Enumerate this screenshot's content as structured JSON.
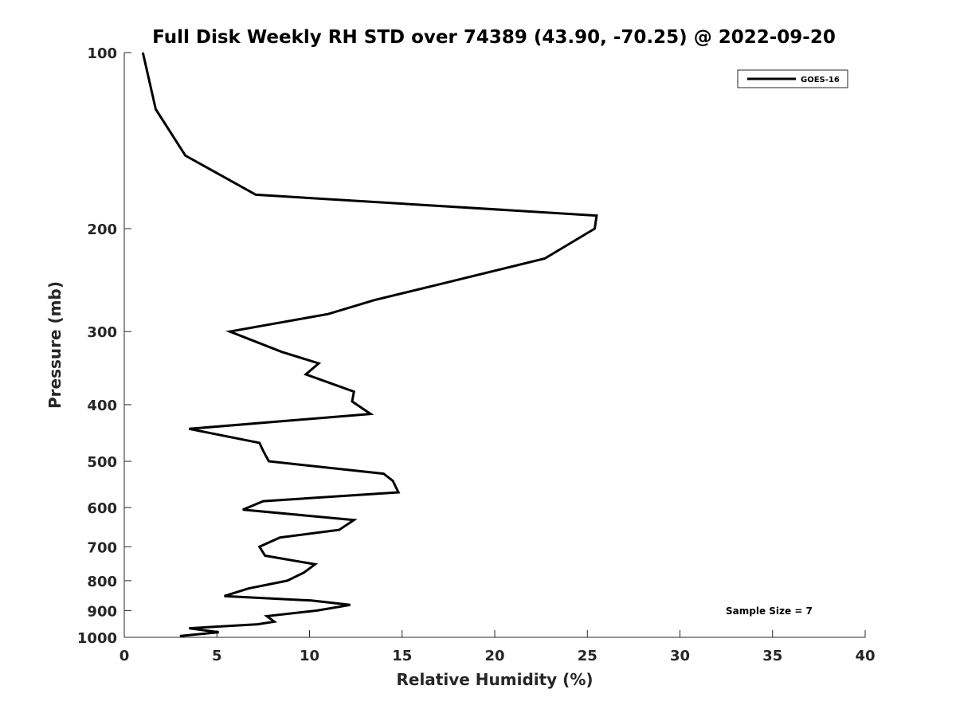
{
  "chart_data": {
    "type": "line",
    "title": "Full Disk Weekly RH STD over 74389 (43.90, -70.25) @ 2022-09-20",
    "xlabel": "Relative Humidity (%)",
    "ylabel": "Pressure (mb)",
    "xlim": [
      0,
      40
    ],
    "ylim": [
      100,
      1000
    ],
    "yscale": "log",
    "y_reversed": true,
    "grid": false,
    "xticks": [
      0,
      5,
      10,
      15,
      20,
      25,
      30,
      35,
      40
    ],
    "yticks": [
      100,
      200,
      300,
      400,
      500,
      600,
      700,
      800,
      900,
      1000
    ],
    "legend": {
      "position": "top-right",
      "entries": [
        "GOES-16"
      ]
    },
    "annotation": "Sample Size = 7",
    "series": [
      {
        "name": "GOES-16",
        "color": "#000000",
        "points": [
          [
            1.0,
            100
          ],
          [
            1.7,
            125
          ],
          [
            3.3,
            150
          ],
          [
            7.1,
            175
          ],
          [
            25.5,
            190
          ],
          [
            25.4,
            200
          ],
          [
            22.7,
            225
          ],
          [
            16.8,
            250
          ],
          [
            13.5,
            265
          ],
          [
            11.0,
            280
          ],
          [
            5.7,
            300
          ],
          [
            8.5,
            325
          ],
          [
            10.5,
            340
          ],
          [
            9.8,
            355
          ],
          [
            12.4,
            380
          ],
          [
            12.3,
            395
          ],
          [
            13.3,
            415
          ],
          [
            3.5,
            440
          ],
          [
            7.3,
            465
          ],
          [
            7.5,
            480
          ],
          [
            7.8,
            500
          ],
          [
            14.0,
            525
          ],
          [
            14.5,
            540
          ],
          [
            14.8,
            565
          ],
          [
            7.5,
            585
          ],
          [
            6.4,
            605
          ],
          [
            12.4,
            630
          ],
          [
            11.6,
            655
          ],
          [
            8.4,
            675
          ],
          [
            7.3,
            700
          ],
          [
            7.6,
            725
          ],
          [
            10.3,
            750
          ],
          [
            9.7,
            775
          ],
          [
            8.8,
            800
          ],
          [
            6.7,
            825
          ],
          [
            5.4,
            850
          ],
          [
            10.1,
            865
          ],
          [
            12.2,
            880
          ],
          [
            10.4,
            900
          ],
          [
            7.7,
            920
          ],
          [
            8.1,
            940
          ],
          [
            7.2,
            950
          ],
          [
            3.5,
            965
          ],
          [
            5.1,
            980
          ],
          [
            3.0,
            995
          ]
        ]
      }
    ]
  }
}
